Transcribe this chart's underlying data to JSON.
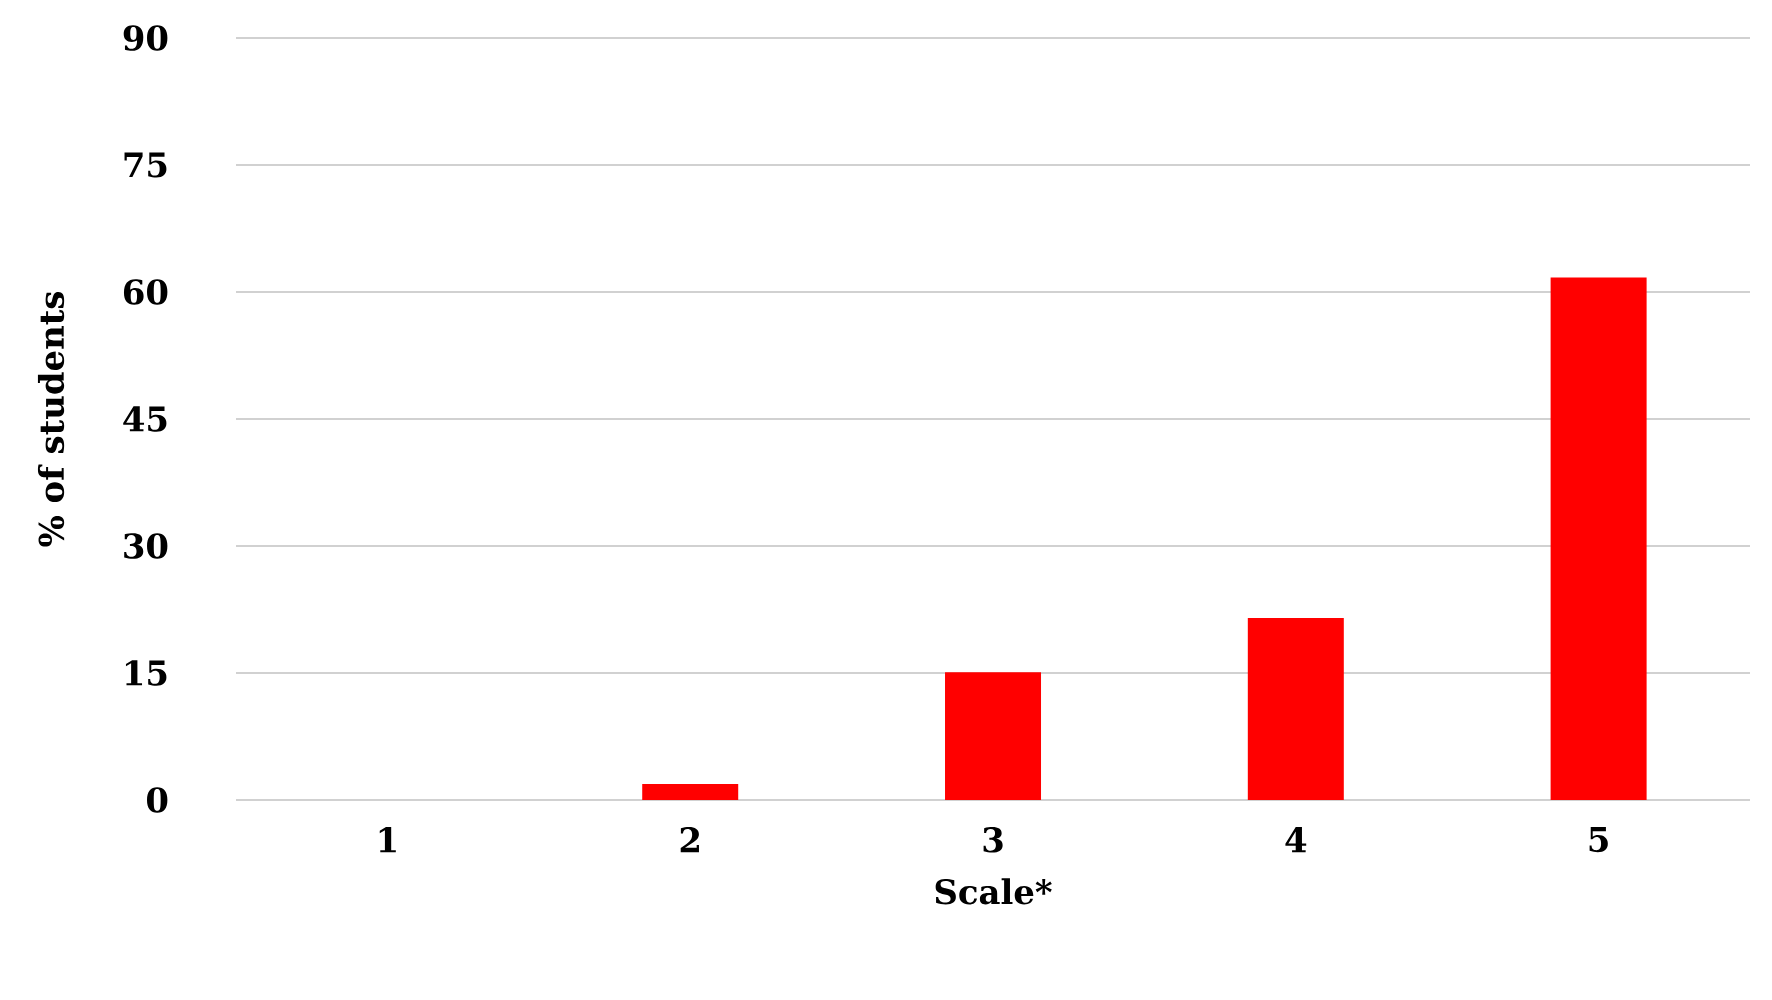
{
  "chart_data": {
    "type": "bar",
    "xlabel": "Scale*",
    "ylabel": "% of students",
    "categories": [
      "1",
      "2",
      "3",
      "4",
      "5"
    ],
    "values": [
      0,
      1.9,
      15.1,
      21.5,
      61.7
    ],
    "color": "#ff0000",
    "ylim": [
      0,
      90
    ],
    "yticks": [
      0,
      15,
      30,
      45,
      60,
      75,
      90
    ],
    "grid": "y"
  }
}
